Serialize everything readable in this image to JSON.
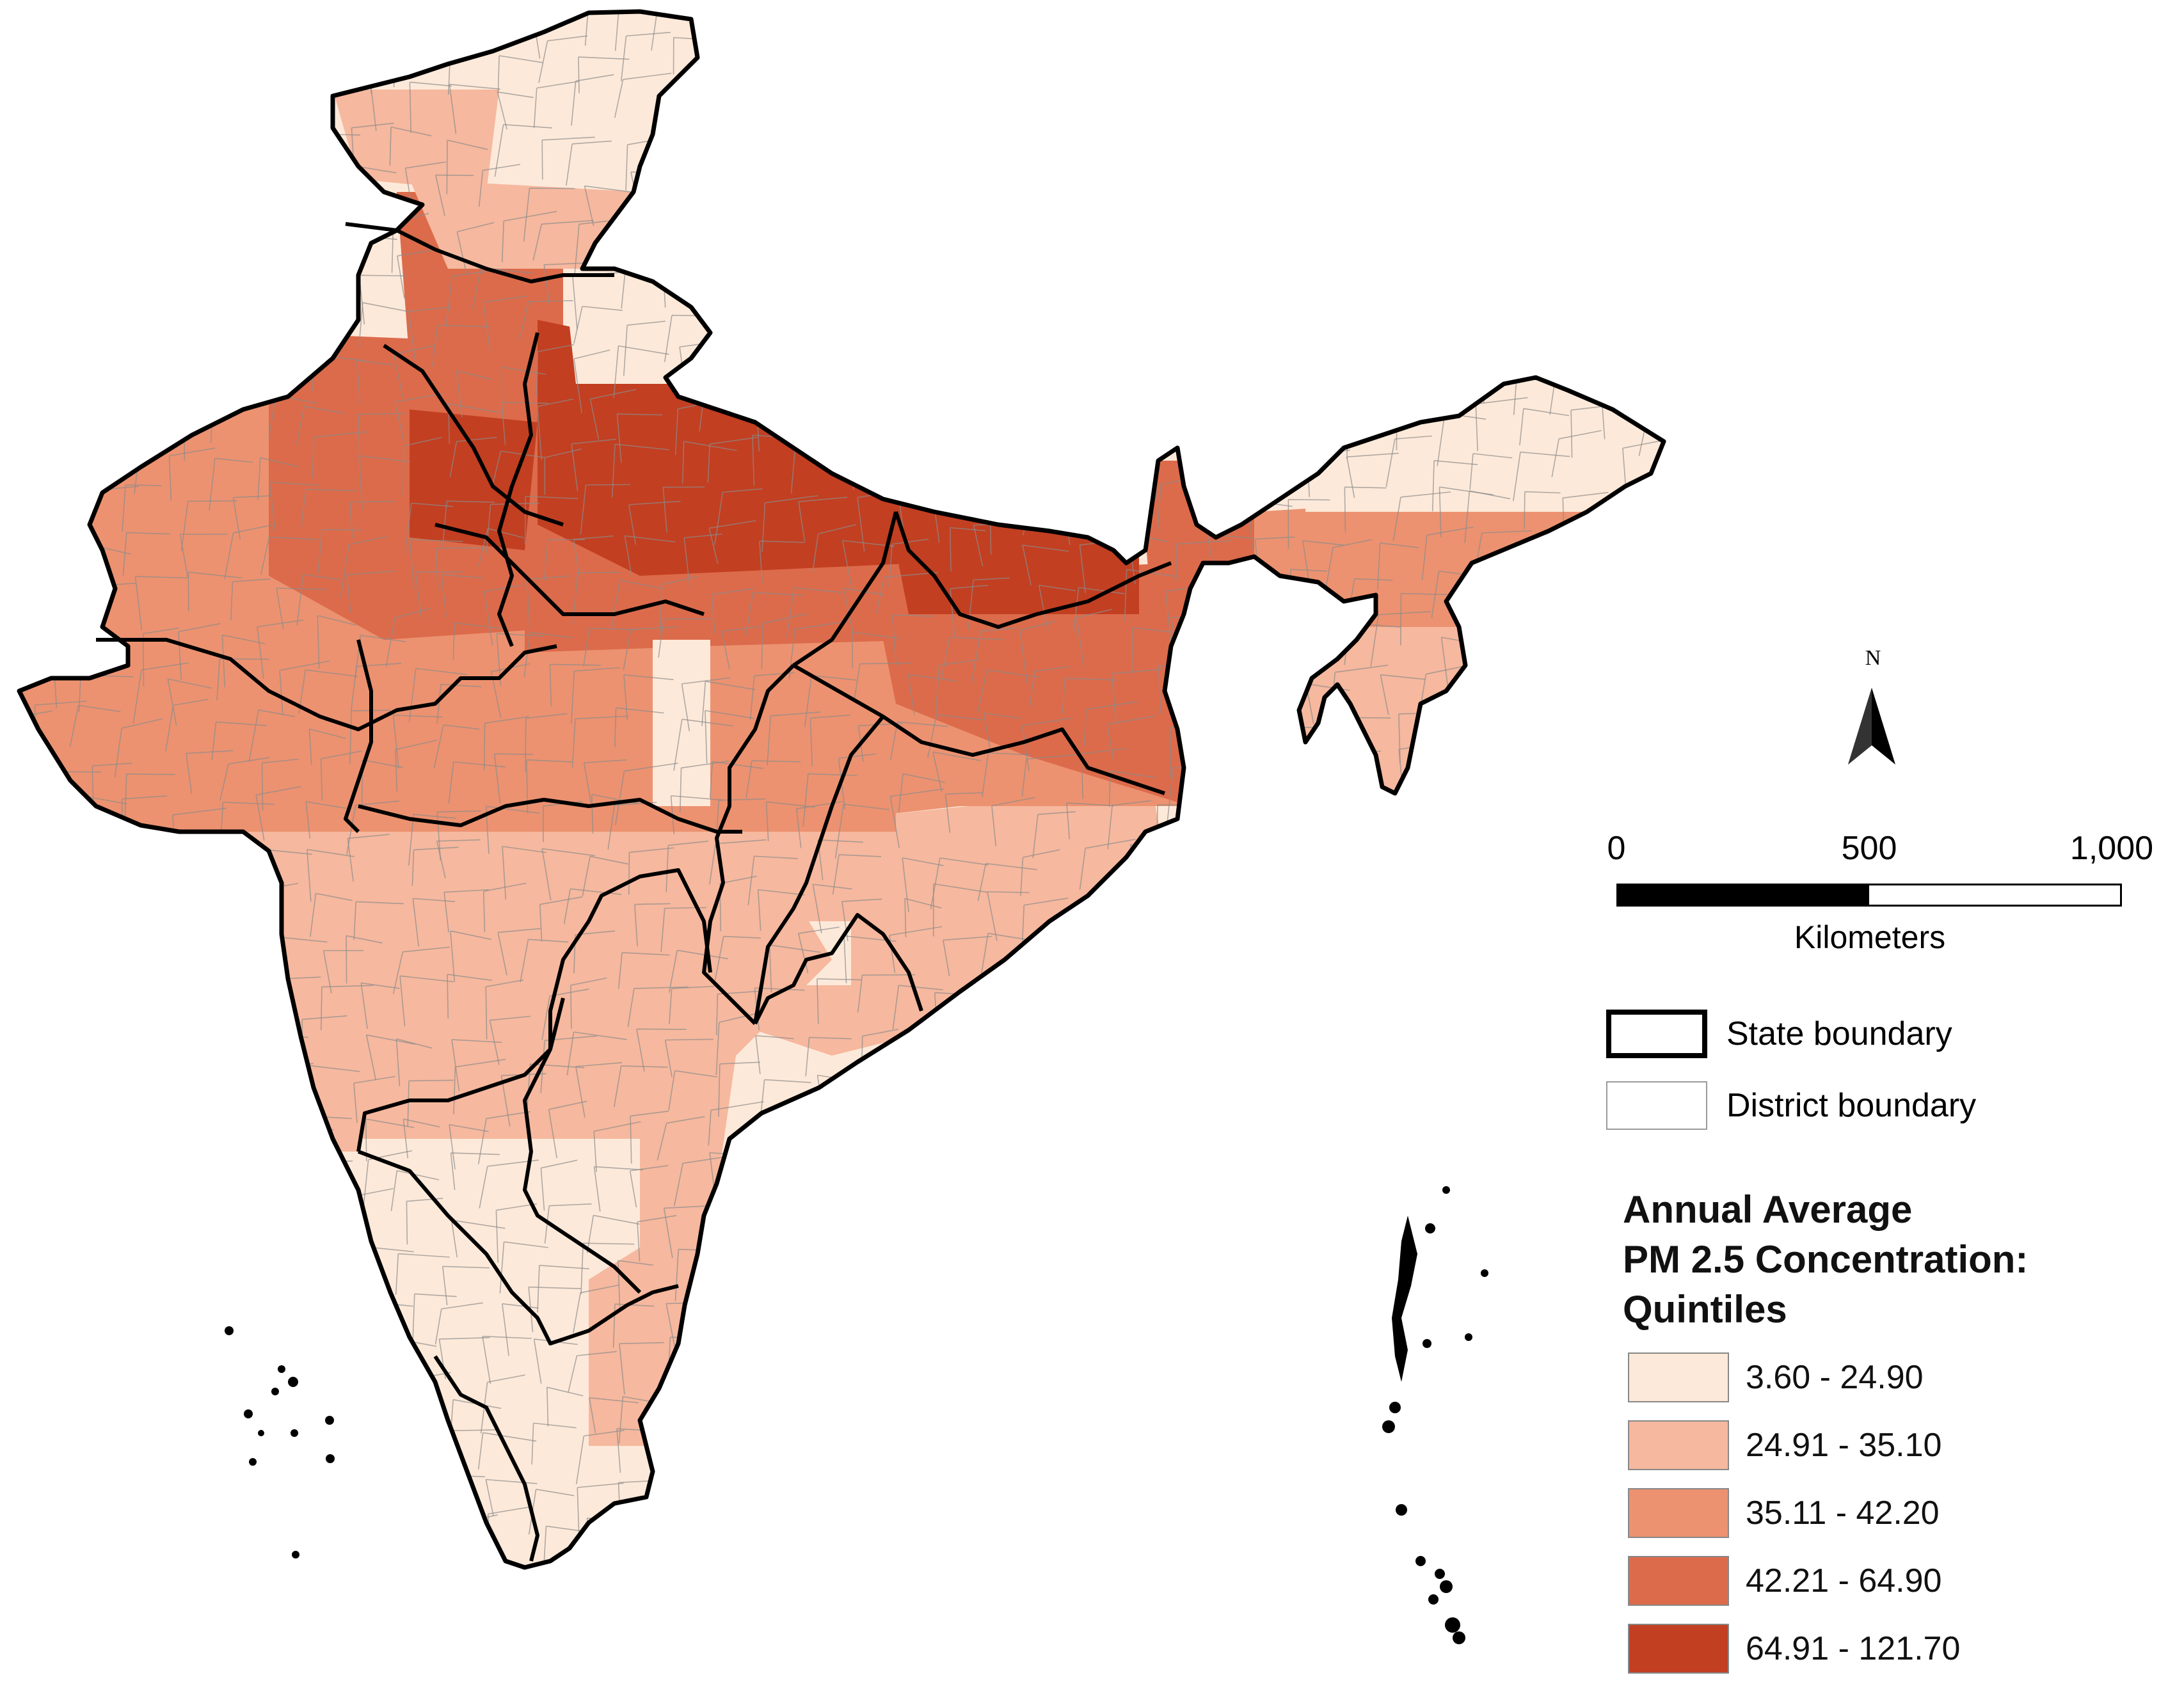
{
  "map": {
    "north_label": "N",
    "scale": {
      "ticks": [
        "0",
        "500",
        "1,000"
      ],
      "units": "Kilometers"
    },
    "boundary_legend": {
      "state": "State boundary",
      "district": "District boundary"
    },
    "legend": {
      "title_lines": [
        "Annual Average",
        "PM 2.5 Concentration:",
        "Quintiles"
      ],
      "classes": [
        {
          "label": "3.60 - 24.90",
          "color": "#fde9d9"
        },
        {
          "label": "24.91 - 35.10",
          "color": "#f6b89e"
        },
        {
          "label": "35.11 - 42.20",
          "color": "#ec9270"
        },
        {
          "label": "42.21 - 64.90",
          "color": "#dc6b4b"
        },
        {
          "label": "64.91 - 121.70",
          "color": "#c23f21"
        }
      ]
    },
    "colors": {
      "state_boundary": "#000000",
      "district_boundary": "#8c8c8c"
    }
  }
}
